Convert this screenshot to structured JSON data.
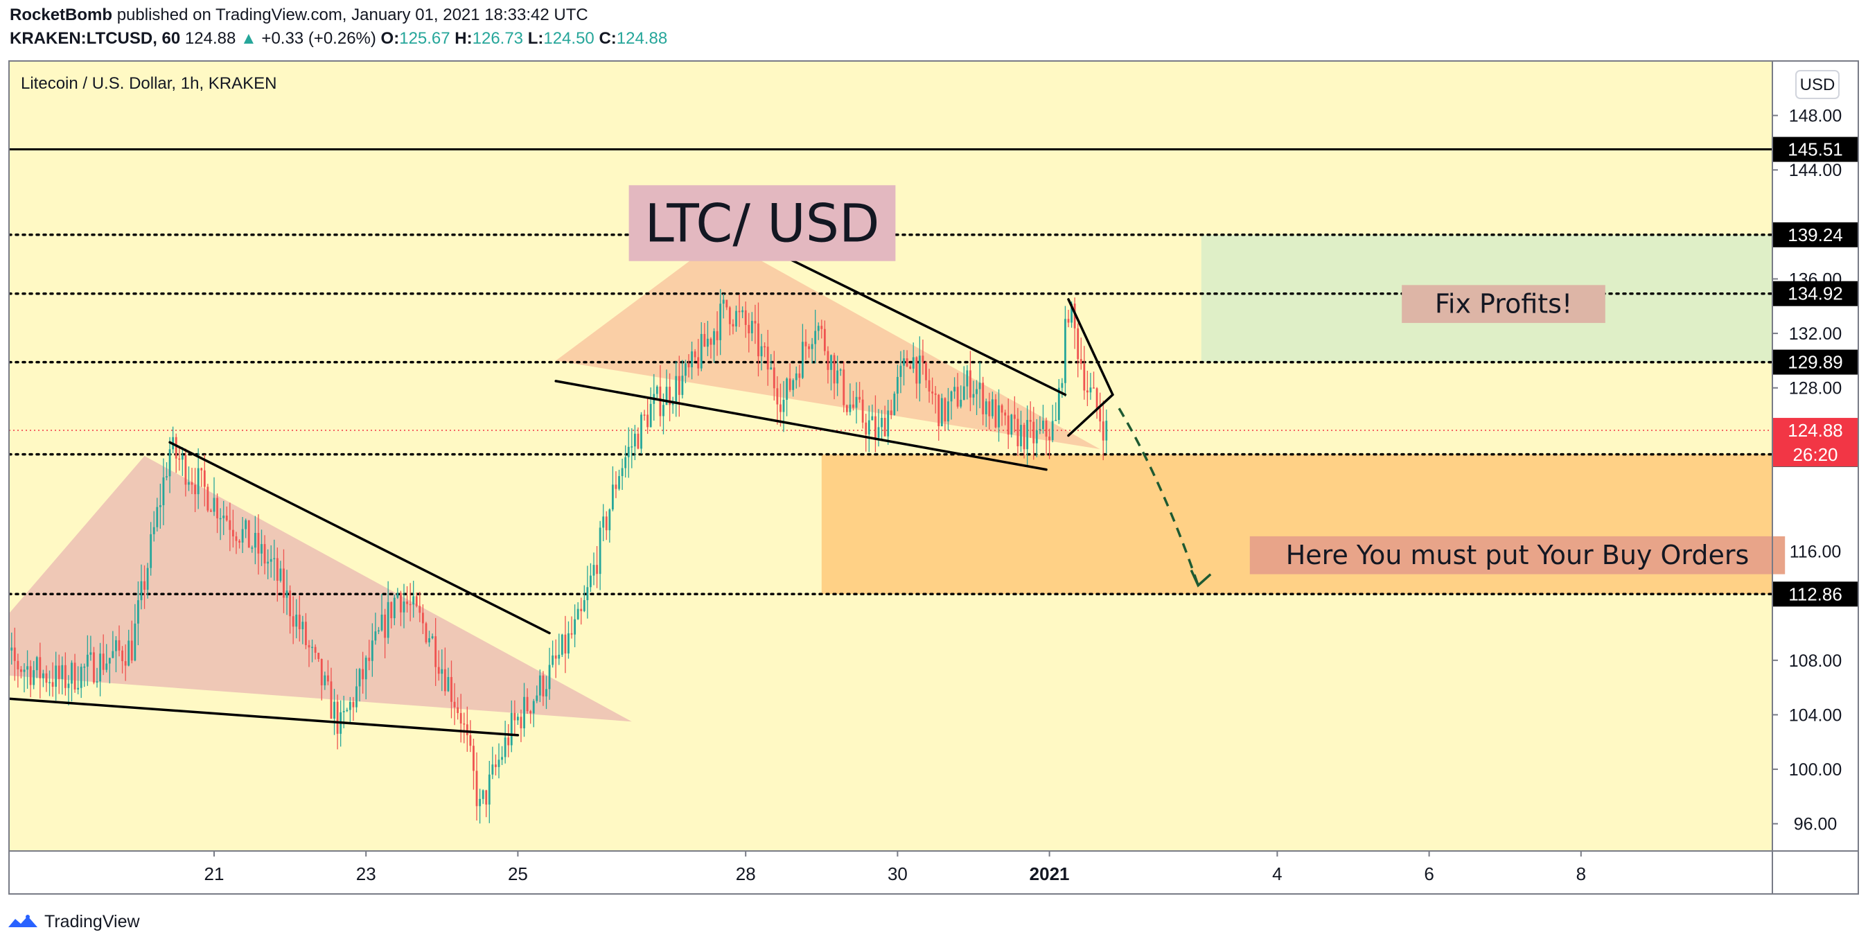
{
  "header": {
    "author": "RocketBomb",
    "published": "published on TradingView.com, January 01, 2021 18:33:42 UTC"
  },
  "symbol_line": {
    "symbol": "KRAKEN:LTCUSD, 60",
    "last": "124.88",
    "change_arrow": "▲",
    "change": "+0.33 (+0.26%)",
    "open_label": "O:",
    "open": "125.67",
    "high_label": "H:",
    "high": "126.73",
    "low_label": "L:",
    "low": "124.50",
    "close_label": "C:",
    "close": "124.88"
  },
  "footer": {
    "brand": "TradingView",
    "logo_icon": "tradingview-logo-icon"
  },
  "colors": {
    "background": "#fff9c4",
    "up_candle": "#26a69a",
    "down_candle": "#ef5350",
    "price_tag": "#f23645",
    "level_tag": "#000000",
    "green_zone": "#dcedc8",
    "orange_zone": "#ffcc80"
  },
  "chart_data": {
    "type": "candlestick",
    "title": "Litecoin / U.S. Dollar, 1h, KRAKEN",
    "currency_button": "USD",
    "y_axis": {
      "range": [
        94,
        152
      ],
      "tick_labels": [
        "148.00",
        "144.00",
        "136.00",
        "132.00",
        "128.00",
        "116.00",
        "108.00",
        "104.00",
        "100.00",
        "96.00"
      ]
    },
    "x_axis": {
      "labels": [
        "21",
        "23",
        "25",
        "28",
        "30",
        "2021",
        "4",
        "6",
        "8"
      ]
    },
    "last_price": {
      "value": 124.88,
      "label": "124.88",
      "countdown": "26:20"
    },
    "horizontal_levels": [
      {
        "value": 145.51,
        "label": "145.51",
        "style": "solid"
      },
      {
        "value": 139.24,
        "label": "139.24",
        "style": "dotted"
      },
      {
        "value": 134.92,
        "label": "134.92",
        "style": "dotted"
      },
      {
        "value": 129.89,
        "label": "129.89",
        "style": "dotted"
      },
      {
        "value": 123.12,
        "label": "123.12",
        "style": "dotted"
      },
      {
        "value": 112.86,
        "label": "112.86",
        "style": "dotted"
      }
    ],
    "zones": [
      {
        "name": "take-profit",
        "from_date": "2021-01-03",
        "to_date": "2021-01-11",
        "top": 139.24,
        "bottom": 129.89,
        "label": "Fix Profits!"
      },
      {
        "name": "buy-zone",
        "from_date": "2020-12-29",
        "to_date": "2021-01-11",
        "top": 123.12,
        "bottom": 112.86,
        "label": "Here You must put Your Buy Orders"
      }
    ],
    "annotations": [
      {
        "text": "LTC/ USD",
        "type": "title-box"
      }
    ],
    "path_points": [
      [
        "2020-12-18 00:00",
        108.5
      ],
      [
        "2020-12-19 00:00",
        106.5
      ],
      [
        "2020-12-19 22:00",
        109
      ],
      [
        "2020-12-20 10:00",
        123.5
      ],
      [
        "2020-12-21 06:00",
        118
      ],
      [
        "2020-12-21 18:00",
        115
      ],
      [
        "2020-12-22 02:00",
        111
      ],
      [
        "2020-12-22 16:00",
        103
      ],
      [
        "2020-12-23 02:00",
        108.5
      ],
      [
        "2020-12-23 10:00",
        113
      ],
      [
        "2020-12-23 20:00",
        110
      ],
      [
        "2020-12-24 06:00",
        104
      ],
      [
        "2020-12-24 12:00",
        97
      ],
      [
        "2020-12-24 22:00",
        103
      ],
      [
        "2020-12-25 10:00",
        107
      ],
      [
        "2020-12-25 20:00",
        111
      ],
      [
        "2020-12-26 08:00",
        122
      ],
      [
        "2020-12-26 18:00",
        126.5
      ],
      [
        "2020-12-27 06:00",
        129
      ],
      [
        "2020-12-27 18:00",
        134
      ],
      [
        "2020-12-28 02:00",
        132
      ],
      [
        "2020-12-28 12:00",
        127
      ],
      [
        "2020-12-28 22:00",
        133
      ],
      [
        "2020-12-29 08:00",
        127
      ],
      [
        "2020-12-29 18:00",
        124.5
      ],
      [
        "2020-12-30 04:00",
        130.5
      ],
      [
        "2020-12-30 14:00",
        126
      ],
      [
        "2020-12-30 23:00",
        128.5
      ],
      [
        "2020-12-31 10:00",
        125
      ],
      [
        "2020-12-31 20:00",
        124.3
      ],
      [
        "2021-01-01 02:00",
        125.2
      ],
      [
        "2021-01-01 06:00",
        134
      ],
      [
        "2021-01-01 12:00",
        128
      ],
      [
        "2021-01-01 18:00",
        124.88
      ]
    ],
    "drawings": [
      {
        "name": "wedge-1-upper-line",
        "from": [
          "2020-12-20 10:00",
          124
        ],
        "to": [
          "2020-12-25 10:00",
          110
        ]
      },
      {
        "name": "wedge-1-lower-line",
        "from": [
          "2020-12-18 00:00",
          105.3
        ],
        "to": [
          "2020-12-25 00:00",
          102.5
        ]
      },
      {
        "name": "wedge-2-upper-line",
        "from": [
          "2020-12-27 20:00",
          139.5
        ],
        "to": [
          "2021-01-01 05:00",
          127.5
        ]
      },
      {
        "name": "wedge-2-lower-line",
        "from": [
          "2020-12-25 12:00",
          128.5
        ],
        "to": [
          "2020-12-31 23:00",
          122
        ]
      },
      {
        "name": "pennant-upper-line",
        "from": [
          "2021-01-01 06:00",
          134.5
        ],
        "to": [
          "2021-01-01 20:00",
          127.5
        ]
      },
      {
        "name": "pennant-lower-line",
        "from": [
          "2021-01-01 06:00",
          124.5
        ],
        "to": [
          "2021-01-01 20:00",
          127.5
        ]
      }
    ],
    "triangles": [
      {
        "name": "triangle-1-fill",
        "points": [
          [
            "2020-12-18 00:00",
            109.5
          ],
          [
            "2020-12-20 02:00",
            123
          ],
          [
            "2020-12-26 12:00",
            103.5
          ],
          [
            "2020-12-18 00:00",
            107
          ]
        ]
      },
      {
        "name": "triangle-2-fill",
        "points": [
          [
            "2020-12-25 12:00",
            130
          ],
          [
            "2020-12-27 16:00",
            139
          ],
          [
            "2021-01-01 16:00",
            123.5
          ]
        ]
      }
    ],
    "projection_arrow": {
      "from": [
        "2021-01-01 22:00",
        126.5
      ],
      "via": [
        "2021-01-02 12:00",
        121
      ],
      "to": [
        "2021-01-02 23:00",
        113.5
      ]
    }
  }
}
